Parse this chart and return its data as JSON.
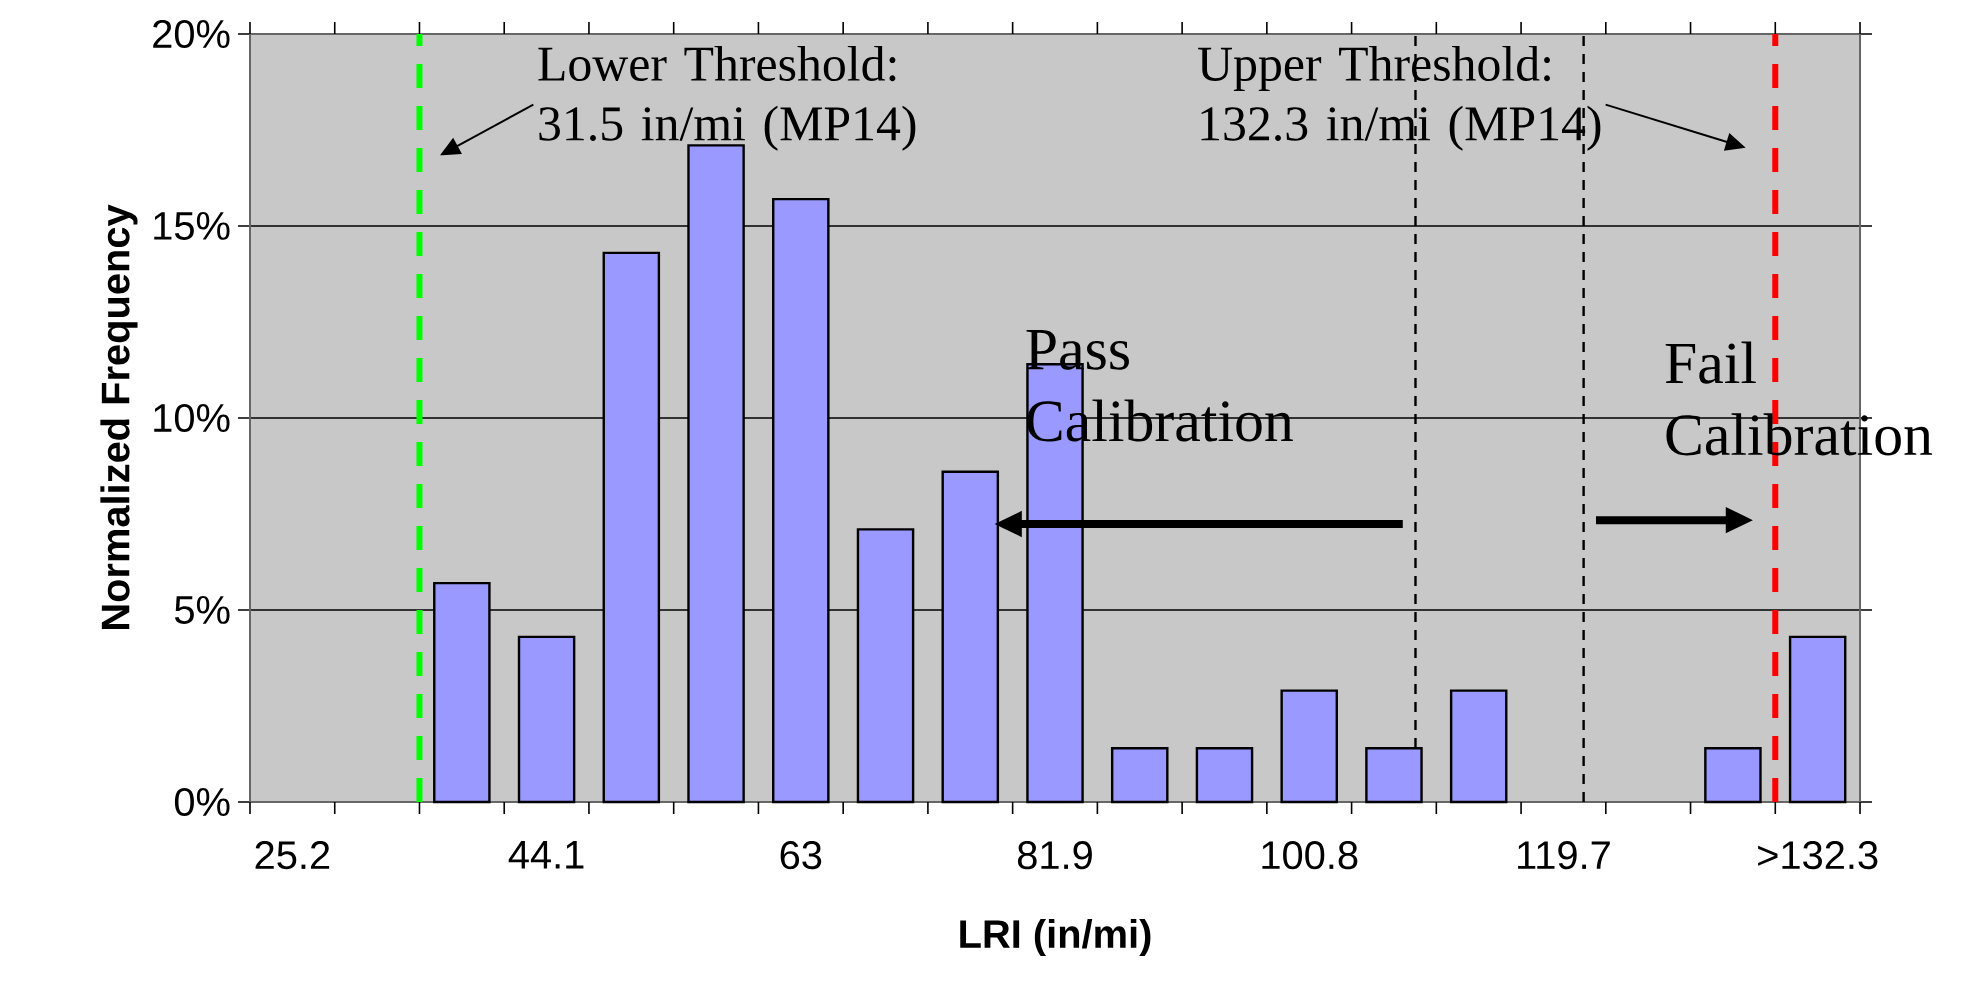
{
  "chart_data": {
    "type": "bar",
    "x": [
      25.2,
      31.5,
      37.8,
      44.1,
      50.4,
      56.7,
      63,
      69.3,
      75.6,
      81.9,
      88.2,
      94.5,
      100.8,
      107.1,
      113.4,
      119.7,
      126,
      132.3,
      138.6
    ],
    "values": [
      0,
      0,
      5.7,
      4.3,
      14.3,
      17.1,
      15.7,
      7.1,
      8.6,
      11.4,
      1.4,
      1.4,
      2.9,
      1.4,
      2.9,
      0,
      0,
      1.4,
      4.3
    ],
    "color": "#9999ff",
    "xlim": [
      22.05,
      141.75
    ],
    "xticks": [
      {
        "value": 22.05,
        "label": null
      },
      25.2,
      {
        "value": 28.35,
        "label": null
      },
      {
        "value": 34.65,
        "label": null
      },
      {
        "value": 40.95,
        "label": null
      },
      44.1,
      {
        "value": 47.25,
        "label": null
      },
      {
        "value": 53.55,
        "label": null
      },
      {
        "value": 59.85,
        "label": null
      },
      63,
      {
        "value": 66.15,
        "label": null
      },
      {
        "value": 72.45,
        "label": null
      },
      {
        "value": 78.75,
        "label": null
      },
      81.9,
      {
        "value": 85.05,
        "label": null
      },
      {
        "value": 91.35,
        "label": null
      },
      {
        "value": 97.65,
        "label": null
      },
      100.8,
      {
        "value": 103.95,
        "label": null
      },
      {
        "value": 110.25,
        "label": null
      },
      {
        "value": 116.55,
        "label": null
      },
      119.7,
      {
        "value": 122.85,
        "label": null
      },
      {
        "value": 129.15,
        "label": null
      },
      {
        "value": 135.45,
        "label": null
      },
      {
        "value": 138.6,
        "label": ">132.3"
      },
      {
        "value": 141.75,
        "label": null
      }
    ],
    "ylim": [
      0,
      20
    ],
    "yticks": [
      {
        "value": 0,
        "label": "0%"
      },
      {
        "value": 5,
        "label": "5%"
      },
      {
        "value": 10,
        "label": "10%"
      },
      {
        "value": 15,
        "label": "15%"
      },
      {
        "value": 20,
        "label": "20%"
      }
    ],
    "xlabel": "LRI (in/mi)",
    "ylabel": "Normalized Frequency",
    "grid": "y",
    "ref_lines": [
      {
        "axis": "x",
        "value": 34.65,
        "color": "#00ff00",
        "line_style": "dashed"
      },
      {
        "axis": "x",
        "value": 135.45,
        "color": "#ff0000",
        "line_style": "dashed"
      },
      {
        "axis": "x",
        "value": 108.7,
        "color": "#000000",
        "line_style": "dashed"
      },
      {
        "axis": "x",
        "value": 121.2,
        "color": "#000000",
        "line_style": "dashed"
      }
    ],
    "annotations": [
      "Lower Threshold: 31.5 in/mi (MP14)",
      "Upper Threshold: 132.3 in/mi (MP14)",
      "Pass Calibration",
      "Fail Calibration"
    ]
  }
}
